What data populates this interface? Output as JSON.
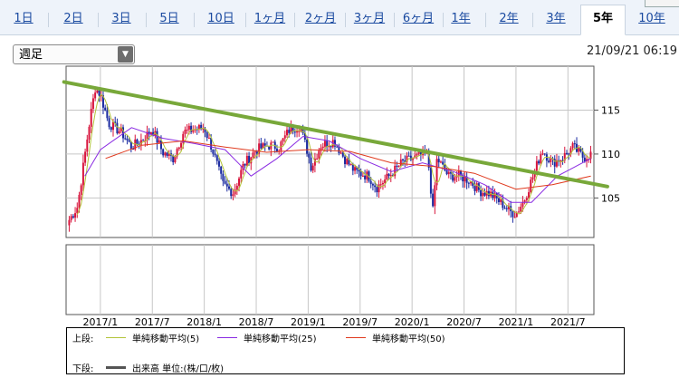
{
  "tabs": [
    {
      "label": "1日"
    },
    {
      "label": "2日"
    },
    {
      "label": "3日"
    },
    {
      "label": "5日"
    },
    {
      "label": "10日"
    },
    {
      "label": "1ヶ月"
    },
    {
      "label": "2ヶ月"
    },
    {
      "label": "3ヶ月"
    },
    {
      "label": "6ヶ月"
    },
    {
      "label": "1年"
    },
    {
      "label": "2年"
    },
    {
      "label": "3年"
    },
    {
      "label": "5年",
      "active": true
    },
    {
      "label": "10年"
    }
  ],
  "period_select": {
    "value": "週足"
  },
  "timestamp": "21/09/21 06:19",
  "legend": {
    "upper_label": "上段:",
    "lower_label": "下段:",
    "ma5": "単純移動平均(5)",
    "ma25": "単純移動平均(25)",
    "ma50": "単純移動平均(50)",
    "volume": "出来高 単位:(株/口/枚)"
  },
  "colors": {
    "candle_up": "#d8143c",
    "candle_down": "#1a2aa0",
    "ma5": "#b3c43a",
    "ma25": "#8a2be2",
    "ma50": "#e03a1e",
    "trendline": "#78a83a",
    "volume": "#555555"
  },
  "chart_data": {
    "type": "candlestick",
    "interval": "週足",
    "x_ticks": [
      "2017/1",
      "2017/7",
      "2018/1",
      "2018/7",
      "2019/1",
      "2019/7",
      "2020/1",
      "2020/7",
      "2021/1",
      "2021/7"
    ],
    "y_ticks": [
      105,
      110,
      115
    ],
    "ylim": [
      100.5,
      120
    ],
    "x_range": [
      "2016/9",
      "2021/9"
    ],
    "price_path": [
      {
        "t": 2016.7,
        "p": 102.5
      },
      {
        "t": 2016.78,
        "p": 104.0
      },
      {
        "t": 2016.84,
        "p": 109.0
      },
      {
        "t": 2016.9,
        "p": 114.0
      },
      {
        "t": 2016.95,
        "p": 117.5
      },
      {
        "t": 2017.0,
        "p": 116.8
      },
      {
        "t": 2017.08,
        "p": 113.5
      },
      {
        "t": 2017.2,
        "p": 112.5
      },
      {
        "t": 2017.3,
        "p": 110.8
      },
      {
        "t": 2017.4,
        "p": 111.6
      },
      {
        "t": 2017.5,
        "p": 112.8
      },
      {
        "t": 2017.6,
        "p": 110.2
      },
      {
        "t": 2017.7,
        "p": 109.5
      },
      {
        "t": 2017.8,
        "p": 112.5
      },
      {
        "t": 2017.9,
        "p": 112.8
      },
      {
        "t": 2018.0,
        "p": 113.0
      },
      {
        "t": 2018.08,
        "p": 110.5
      },
      {
        "t": 2018.18,
        "p": 106.5
      },
      {
        "t": 2018.28,
        "p": 105.6
      },
      {
        "t": 2018.38,
        "p": 108.8
      },
      {
        "t": 2018.5,
        "p": 110.5
      },
      {
        "t": 2018.62,
        "p": 111.0
      },
      {
        "t": 2018.72,
        "p": 110.8
      },
      {
        "t": 2018.82,
        "p": 112.8
      },
      {
        "t": 2018.92,
        "p": 113.2
      },
      {
        "t": 2019.0,
        "p": 110.0
      },
      {
        "t": 2019.03,
        "p": 108.5
      },
      {
        "t": 2019.12,
        "p": 111.0
      },
      {
        "t": 2019.25,
        "p": 111.5
      },
      {
        "t": 2019.35,
        "p": 109.5
      },
      {
        "t": 2019.45,
        "p": 108.0
      },
      {
        "t": 2019.58,
        "p": 107.5
      },
      {
        "t": 2019.66,
        "p": 106.2
      },
      {
        "t": 2019.78,
        "p": 107.5
      },
      {
        "t": 2019.9,
        "p": 109.0
      },
      {
        "t": 2020.0,
        "p": 109.5
      },
      {
        "t": 2020.08,
        "p": 109.8
      },
      {
        "t": 2020.15,
        "p": 110.0
      },
      {
        "t": 2020.2,
        "p": 103.5
      },
      {
        "t": 2020.24,
        "p": 109.5
      },
      {
        "t": 2020.35,
        "p": 107.5
      },
      {
        "t": 2020.45,
        "p": 107.5
      },
      {
        "t": 2020.55,
        "p": 107.0
      },
      {
        "t": 2020.65,
        "p": 105.8
      },
      {
        "t": 2020.75,
        "p": 105.5
      },
      {
        "t": 2020.85,
        "p": 104.5
      },
      {
        "t": 2020.95,
        "p": 103.4
      },
      {
        "t": 2021.0,
        "p": 103.2
      },
      {
        "t": 2021.08,
        "p": 104.8
      },
      {
        "t": 2021.18,
        "p": 108.0
      },
      {
        "t": 2021.25,
        "p": 110.5
      },
      {
        "t": 2021.35,
        "p": 109.0
      },
      {
        "t": 2021.45,
        "p": 109.6
      },
      {
        "t": 2021.55,
        "p": 110.8
      },
      {
        "t": 2021.65,
        "p": 109.6
      },
      {
        "t": 2021.72,
        "p": 110.0
      }
    ],
    "trendline": [
      {
        "t": 2016.65,
        "p": 118.2
      },
      {
        "t": 2021.88,
        "p": 106.3
      }
    ],
    "ma50_path": [
      {
        "t": 2017.05,
        "p": 109.5
      },
      {
        "t": 2017.4,
        "p": 111.0
      },
      {
        "t": 2017.8,
        "p": 111.5
      },
      {
        "t": 2018.2,
        "p": 110.8
      },
      {
        "t": 2018.6,
        "p": 110.2
      },
      {
        "t": 2019.0,
        "p": 110.5
      },
      {
        "t": 2019.4,
        "p": 110.3
      },
      {
        "t": 2019.8,
        "p": 109.0
      },
      {
        "t": 2020.2,
        "p": 108.6
      },
      {
        "t": 2020.6,
        "p": 107.8
      },
      {
        "t": 2021.0,
        "p": 106.0
      },
      {
        "t": 2021.35,
        "p": 106.5
      },
      {
        "t": 2021.72,
        "p": 107.5
      }
    ],
    "ma25_path": [
      {
        "t": 2016.85,
        "p": 107.5
      },
      {
        "t": 2017.0,
        "p": 110.5
      },
      {
        "t": 2017.3,
        "p": 113.0
      },
      {
        "t": 2017.6,
        "p": 111.8
      },
      {
        "t": 2017.9,
        "p": 111.2
      },
      {
        "t": 2018.2,
        "p": 110.5
      },
      {
        "t": 2018.45,
        "p": 107.5
      },
      {
        "t": 2018.7,
        "p": 109.5
      },
      {
        "t": 2018.95,
        "p": 112.0
      },
      {
        "t": 2019.2,
        "p": 111.5
      },
      {
        "t": 2019.5,
        "p": 109.5
      },
      {
        "t": 2019.8,
        "p": 108.0
      },
      {
        "t": 2020.1,
        "p": 109.0
      },
      {
        "t": 2020.4,
        "p": 108.0
      },
      {
        "t": 2020.7,
        "p": 106.5
      },
      {
        "t": 2020.95,
        "p": 104.5
      },
      {
        "t": 2021.15,
        "p": 104.5
      },
      {
        "t": 2021.4,
        "p": 107.5
      },
      {
        "t": 2021.72,
        "p": 109.5
      }
    ]
  }
}
